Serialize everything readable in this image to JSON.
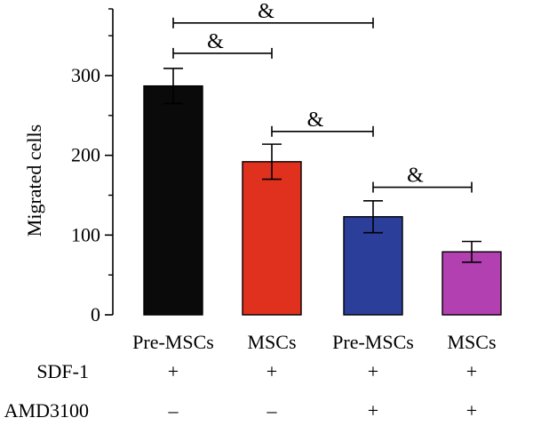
{
  "chart_data": {
    "type": "bar",
    "title": "",
    "ylabel": "Migrated cells",
    "xlabel": "",
    "ylim": [
      0,
      380
    ],
    "yticks": [
      0,
      100,
      200,
      300
    ],
    "categories": [
      "Pre-MSCs",
      "MSCs",
      "Pre-MSCs",
      "MSCs"
    ],
    "values": [
      287,
      192,
      123,
      79
    ],
    "errors": [
      22,
      22,
      20,
      13
    ],
    "colors": [
      "#0a0a0a",
      "#e0301e",
      "#2b3f9a",
      "#b340b0"
    ],
    "conditions": [
      {
        "label": "SDF-1",
        "marks": [
          "+",
          "+",
          "+",
          "+"
        ]
      },
      {
        "label": "AMD3100",
        "marks": [
          "–",
          "–",
          "+",
          "+"
        ]
      }
    ],
    "significance": [
      {
        "from": 0,
        "to": 2,
        "y": 366,
        "label": "&"
      },
      {
        "from": 0,
        "to": 1,
        "y": 328,
        "label": "&"
      },
      {
        "from": 1,
        "to": 2,
        "y": 230,
        "label": "&"
      },
      {
        "from": 2,
        "to": 3,
        "y": 160,
        "label": "&"
      }
    ],
    "grid": false,
    "legend": "none"
  }
}
